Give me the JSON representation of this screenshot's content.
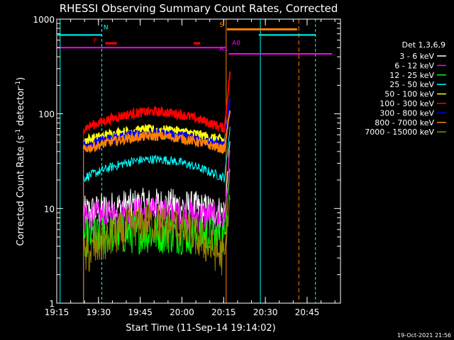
{
  "chart_data": {
    "type": "line",
    "title": "RHESSI Observing Summary Count Rates, Corrected",
    "xlabel": "Start Time (11-Sep-14 19:14:02)",
    "ylabel": "Corrected Count Rate (s⁻¹ detector⁻¹)",
    "ylabel_parts": {
      "main": "Corrected Count Rate (s",
      "sup1": "-1",
      "mid": " detector",
      "sup2": "-1",
      "end": ")"
    },
    "yscale": "log",
    "ylim": [
      1,
      1000
    ],
    "xlim_minutes": [
      19.25,
      20.95
    ],
    "xticks": [
      "19:15",
      "19:30",
      "19:45",
      "20:00",
      "20:15",
      "20:30",
      "20:45"
    ],
    "yticks": [
      "1",
      "10",
      "100",
      "1000"
    ],
    "legend_title": "Det 1,3,6,9",
    "legend_position": "right",
    "timestamp": "19-Oct-2021 21:56",
    "series": [
      {
        "name": "3 - 6 keV",
        "color": "#ffffff",
        "base": 9,
        "peak": 11,
        "end": 50
      },
      {
        "name": "6 - 12 keV",
        "color": "#ff00ff",
        "base": 7.5,
        "peak": 9,
        "end": 40
      },
      {
        "name": "12 - 25 keV",
        "color": "#00ff00",
        "base": 5,
        "peak": 5.5,
        "end": 30
      },
      {
        "name": "25 - 50 keV",
        "color": "#00ffff",
        "base": 21,
        "peak": 33,
        "end": 75
      },
      {
        "name": "50 - 100 keV",
        "color": "#ffff00",
        "base": 52,
        "peak": 68,
        "end": 110
      },
      {
        "name": "100 - 300 keV",
        "color": "#ff0000",
        "base": 70,
        "peak": 105,
        "end": 300
      },
      {
        "name": "300 - 800 keV",
        "color": "#0000ff",
        "base": 46,
        "peak": 62,
        "end": 150
      },
      {
        "name": "800 - 7000 keV",
        "color": "#ff8000",
        "base": 42,
        "peak": 58,
        "end": 120
      },
      {
        "name": "7000 - 15000 keV",
        "color": "#9a8000",
        "base": 3,
        "peak": 7,
        "end": 15
      }
    ],
    "annotations": [
      {
        "label": "N",
        "color": "#00ffff",
        "value": 680
      },
      {
        "label": "F",
        "color": "#ff0000",
        "value": 555
      },
      {
        "label": "S",
        "color": "#ff8000",
        "value": 780
      },
      {
        "label": "A0",
        "color": "#ff00ff",
        "value": 500
      },
      {
        "label": "A1",
        "color": "#ff00ff",
        "value": 430
      }
    ]
  }
}
